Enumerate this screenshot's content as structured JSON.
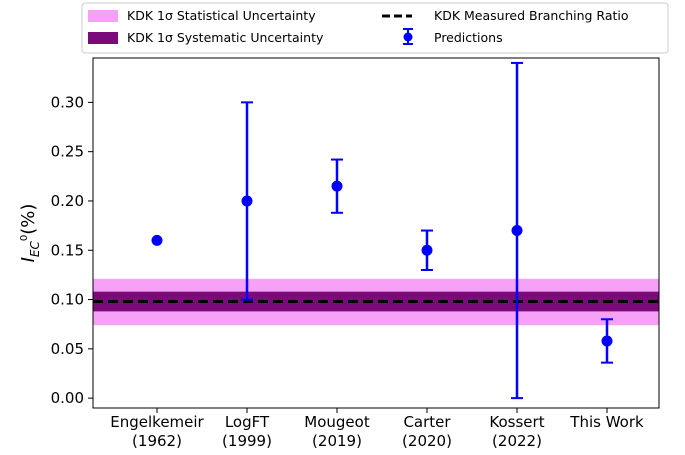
{
  "chart_data": {
    "type": "scatter",
    "xlabel": "",
    "ylabel": {
      "main": "I",
      "sub": "EC",
      "sup": "0",
      "suffix": "(%)"
    },
    "ylim": [
      -0.01,
      0.345
    ],
    "yticks": [
      {
        "value": 0.0,
        "label": "0.00"
      },
      {
        "value": 0.05,
        "label": "0.05"
      },
      {
        "value": 0.1,
        "label": "0.10"
      },
      {
        "value": 0.15,
        "label": "0.15"
      },
      {
        "value": 0.2,
        "label": "0.20"
      },
      {
        "value": 0.25,
        "label": "0.25"
      },
      {
        "value": 0.3,
        "label": "0.30"
      }
    ],
    "categories": [
      {
        "line1": "Engelkemeir",
        "line2": "(1962)"
      },
      {
        "line1": "LogFT",
        "line2": "(1999)"
      },
      {
        "line1": "Mougeot",
        "line2": "(2019)"
      },
      {
        "line1": "Carter",
        "line2": "(2020)"
      },
      {
        "line1": "Kossert",
        "line2": "(2022)"
      },
      {
        "line1": "This Work",
        "line2": ""
      }
    ],
    "predictions": {
      "name": "Predictions",
      "color": "#0000ff",
      "points": [
        {
          "y": 0.16,
          "err_low": null,
          "err_high": null
        },
        {
          "y": 0.2,
          "err_low": 0.1,
          "err_high": 0.3
        },
        {
          "y": 0.215,
          "err_low": 0.188,
          "err_high": 0.242
        },
        {
          "y": 0.15,
          "err_low": 0.13,
          "err_high": 0.17
        },
        {
          "y": 0.17,
          "err_low": 0.0,
          "err_high": 0.34
        },
        {
          "y": 0.058,
          "err_low": 0.036,
          "err_high": 0.08
        }
      ]
    },
    "measured": {
      "name": "KDK Measured Branching Ratio",
      "value": 0.098,
      "color": "#000000",
      "style": "dashed"
    },
    "statistical_band": {
      "name": "KDK 1σ Statistical Uncertainty",
      "low": 0.074,
      "high": 0.121,
      "color": "#f7a0f7"
    },
    "systematic_band": {
      "name": "KDK 1σ Systematic Uncertainty",
      "low": 0.088,
      "high": 0.108,
      "color": "#7b0a7b"
    },
    "legend_position": "top (outside, above plot)",
    "grid": false
  }
}
